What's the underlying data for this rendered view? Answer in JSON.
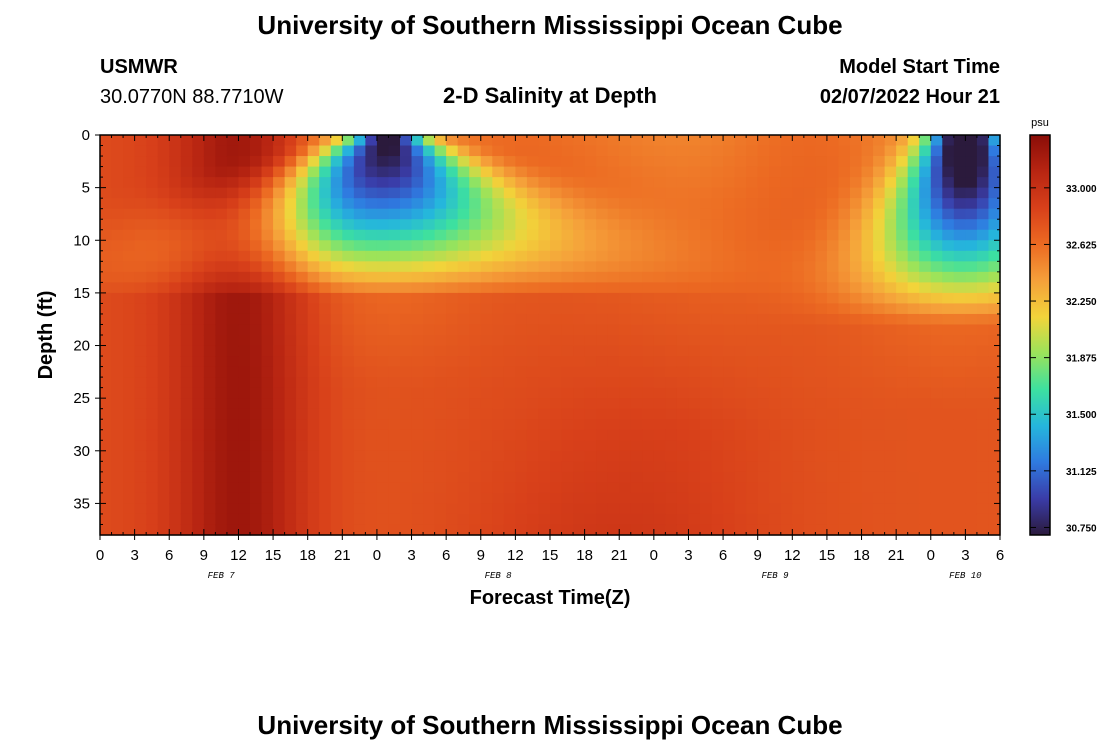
{
  "header": {
    "title": "University of Southern Mississippi Ocean Cube",
    "station_id": "USMWR",
    "coordinates": "30.0770N  88.7710W",
    "model_start_label": "Model Start Time",
    "model_start_value": "02/07/2022 Hour 21"
  },
  "footer": {
    "title": "University of Southern Mississippi Ocean Cube"
  },
  "chart_data": {
    "type": "heatmap",
    "title": "2-D Salinity at Depth",
    "xlabel": "Forecast Time(Z)",
    "ylabel": "Depth (ft)",
    "y_axis_inverted": true,
    "ylim": [
      0,
      38
    ],
    "y_ticks": [
      0,
      5,
      10,
      15,
      20,
      25,
      30,
      35
    ],
    "x_hours_range": [
      0,
      78
    ],
    "x_tick_labels": [
      "0",
      "3",
      "6",
      "9",
      "12",
      "15",
      "18",
      "21",
      "0",
      "3",
      "6",
      "9",
      "12",
      "15",
      "18",
      "21",
      "0",
      "3",
      "6",
      "9",
      "12",
      "15",
      "18",
      "21",
      "0",
      "3",
      "6"
    ],
    "date_labels": [
      {
        "text": "FEB 7",
        "hour": 10.5
      },
      {
        "text": "FEB 8",
        "hour": 34.5
      },
      {
        "text": "FEB 9",
        "hour": 58.5
      },
      {
        "text": "FEB 10",
        "hour": 75
      }
    ],
    "colorbar": {
      "unit": "psu",
      "range": [
        30.7,
        33.35
      ],
      "tick_values": [
        33.0,
        32.625,
        32.25,
        31.875,
        31.5,
        31.125,
        30.75
      ],
      "tick_labels": [
        "33.000",
        "32.625",
        "32.250",
        "31.875",
        "31.500",
        "31.125",
        "30.750"
      ],
      "colors": [
        "#2b1a3c",
        "#3a3ca8",
        "#2f7ae0",
        "#25b6dc",
        "#3de0a0",
        "#9be35a",
        "#f2d43a",
        "#f5a03a",
        "#ec6a22",
        "#d8401a",
        "#b82512",
        "#8a0d08"
      ]
    },
    "grid": false,
    "series_description": [
      {
        "feature": "high salinity band",
        "hours": [
          8,
          16
        ],
        "value": 33.3
      },
      {
        "feature": "low salinity surface plume",
        "hours": [
          21,
          30
        ],
        "depth": [
          0,
          14
        ],
        "min_value": 31.0
      },
      {
        "feature": "low salinity surface plume",
        "hours": [
          70,
          78
        ],
        "depth": [
          0,
          14
        ],
        "min_value": 30.8
      }
    ]
  }
}
